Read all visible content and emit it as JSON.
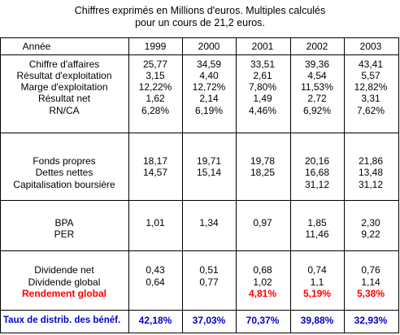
{
  "caption": {
    "line1": "Chiffres exprimés en Millions d'euros. Multiples calculés",
    "line2": "pour un cours de 21,2 euros."
  },
  "header": {
    "label": "Année",
    "years": [
      "1999",
      "2000",
      "2001",
      "2002",
      "2003"
    ]
  },
  "sections": [
    {
      "rows": [
        {
          "label": "Chiffre d'affaires",
          "values": [
            "25,77",
            "34,59",
            "33,51",
            "39,36",
            "43,41"
          ]
        },
        {
          "label": "Résultat d'exploitation",
          "values": [
            "3,15",
            "4,40",
            "2,61",
            "4,54",
            "5,57"
          ]
        },
        {
          "label": "Marge d'exploitation",
          "values": [
            "12,22%",
            "12,72%",
            "7,80%",
            "11,53%",
            "12,82%"
          ]
        },
        {
          "label": "Résultat net",
          "values": [
            "1,62",
            "2,14",
            "1,49",
            "2,72",
            "3,31"
          ]
        },
        {
          "label": "RN/CA",
          "values": [
            "6,28%",
            "6,19%",
            "4,46%",
            "6,92%",
            "7,62%"
          ]
        }
      ]
    },
    {
      "rows": [
        {
          "label": "Fonds propres",
          "values": [
            "18,17",
            "19,71",
            "19,78",
            "20,16",
            "21,86"
          ]
        },
        {
          "label": "Dettes nettes",
          "values": [
            "14,57",
            "15,14",
            "18,25",
            "16,68",
            "13,48"
          ]
        },
        {
          "label": "Capitalisation boursière",
          "values": [
            "",
            "",
            "",
            "31,12",
            "31,12"
          ]
        }
      ]
    },
    {
      "rows": [
        {
          "label": "BPA",
          "values": [
            "1,01",
            "1,34",
            "0,97",
            "1,85",
            "2,30"
          ]
        },
        {
          "label": "PER",
          "values": [
            "",
            "",
            "",
            "11,46",
            "9,22"
          ]
        }
      ]
    },
    {
      "rows": [
        {
          "label": "Dividende net",
          "values": [
            "0,43",
            "0,51",
            "0,68",
            "0,74",
            "0,76"
          ]
        },
        {
          "label": "Dividende global",
          "values": [
            "0,64",
            "0,77",
            "1,02",
            "1,1",
            "1,14"
          ]
        },
        {
          "label": "Rendement global",
          "values": [
            "",
            "",
            "4,81%",
            "5,19%",
            "5,38%"
          ]
        }
      ]
    }
  ],
  "footer": {
    "label": "Taux de distrib. des bénéf.",
    "values": [
      "42,18%",
      "37,03%",
      "70,37%",
      "39,88%",
      "32,93%"
    ]
  },
  "colors": {
    "highlight_red": "#ff0000",
    "highlight_blue": "#0000cc"
  }
}
